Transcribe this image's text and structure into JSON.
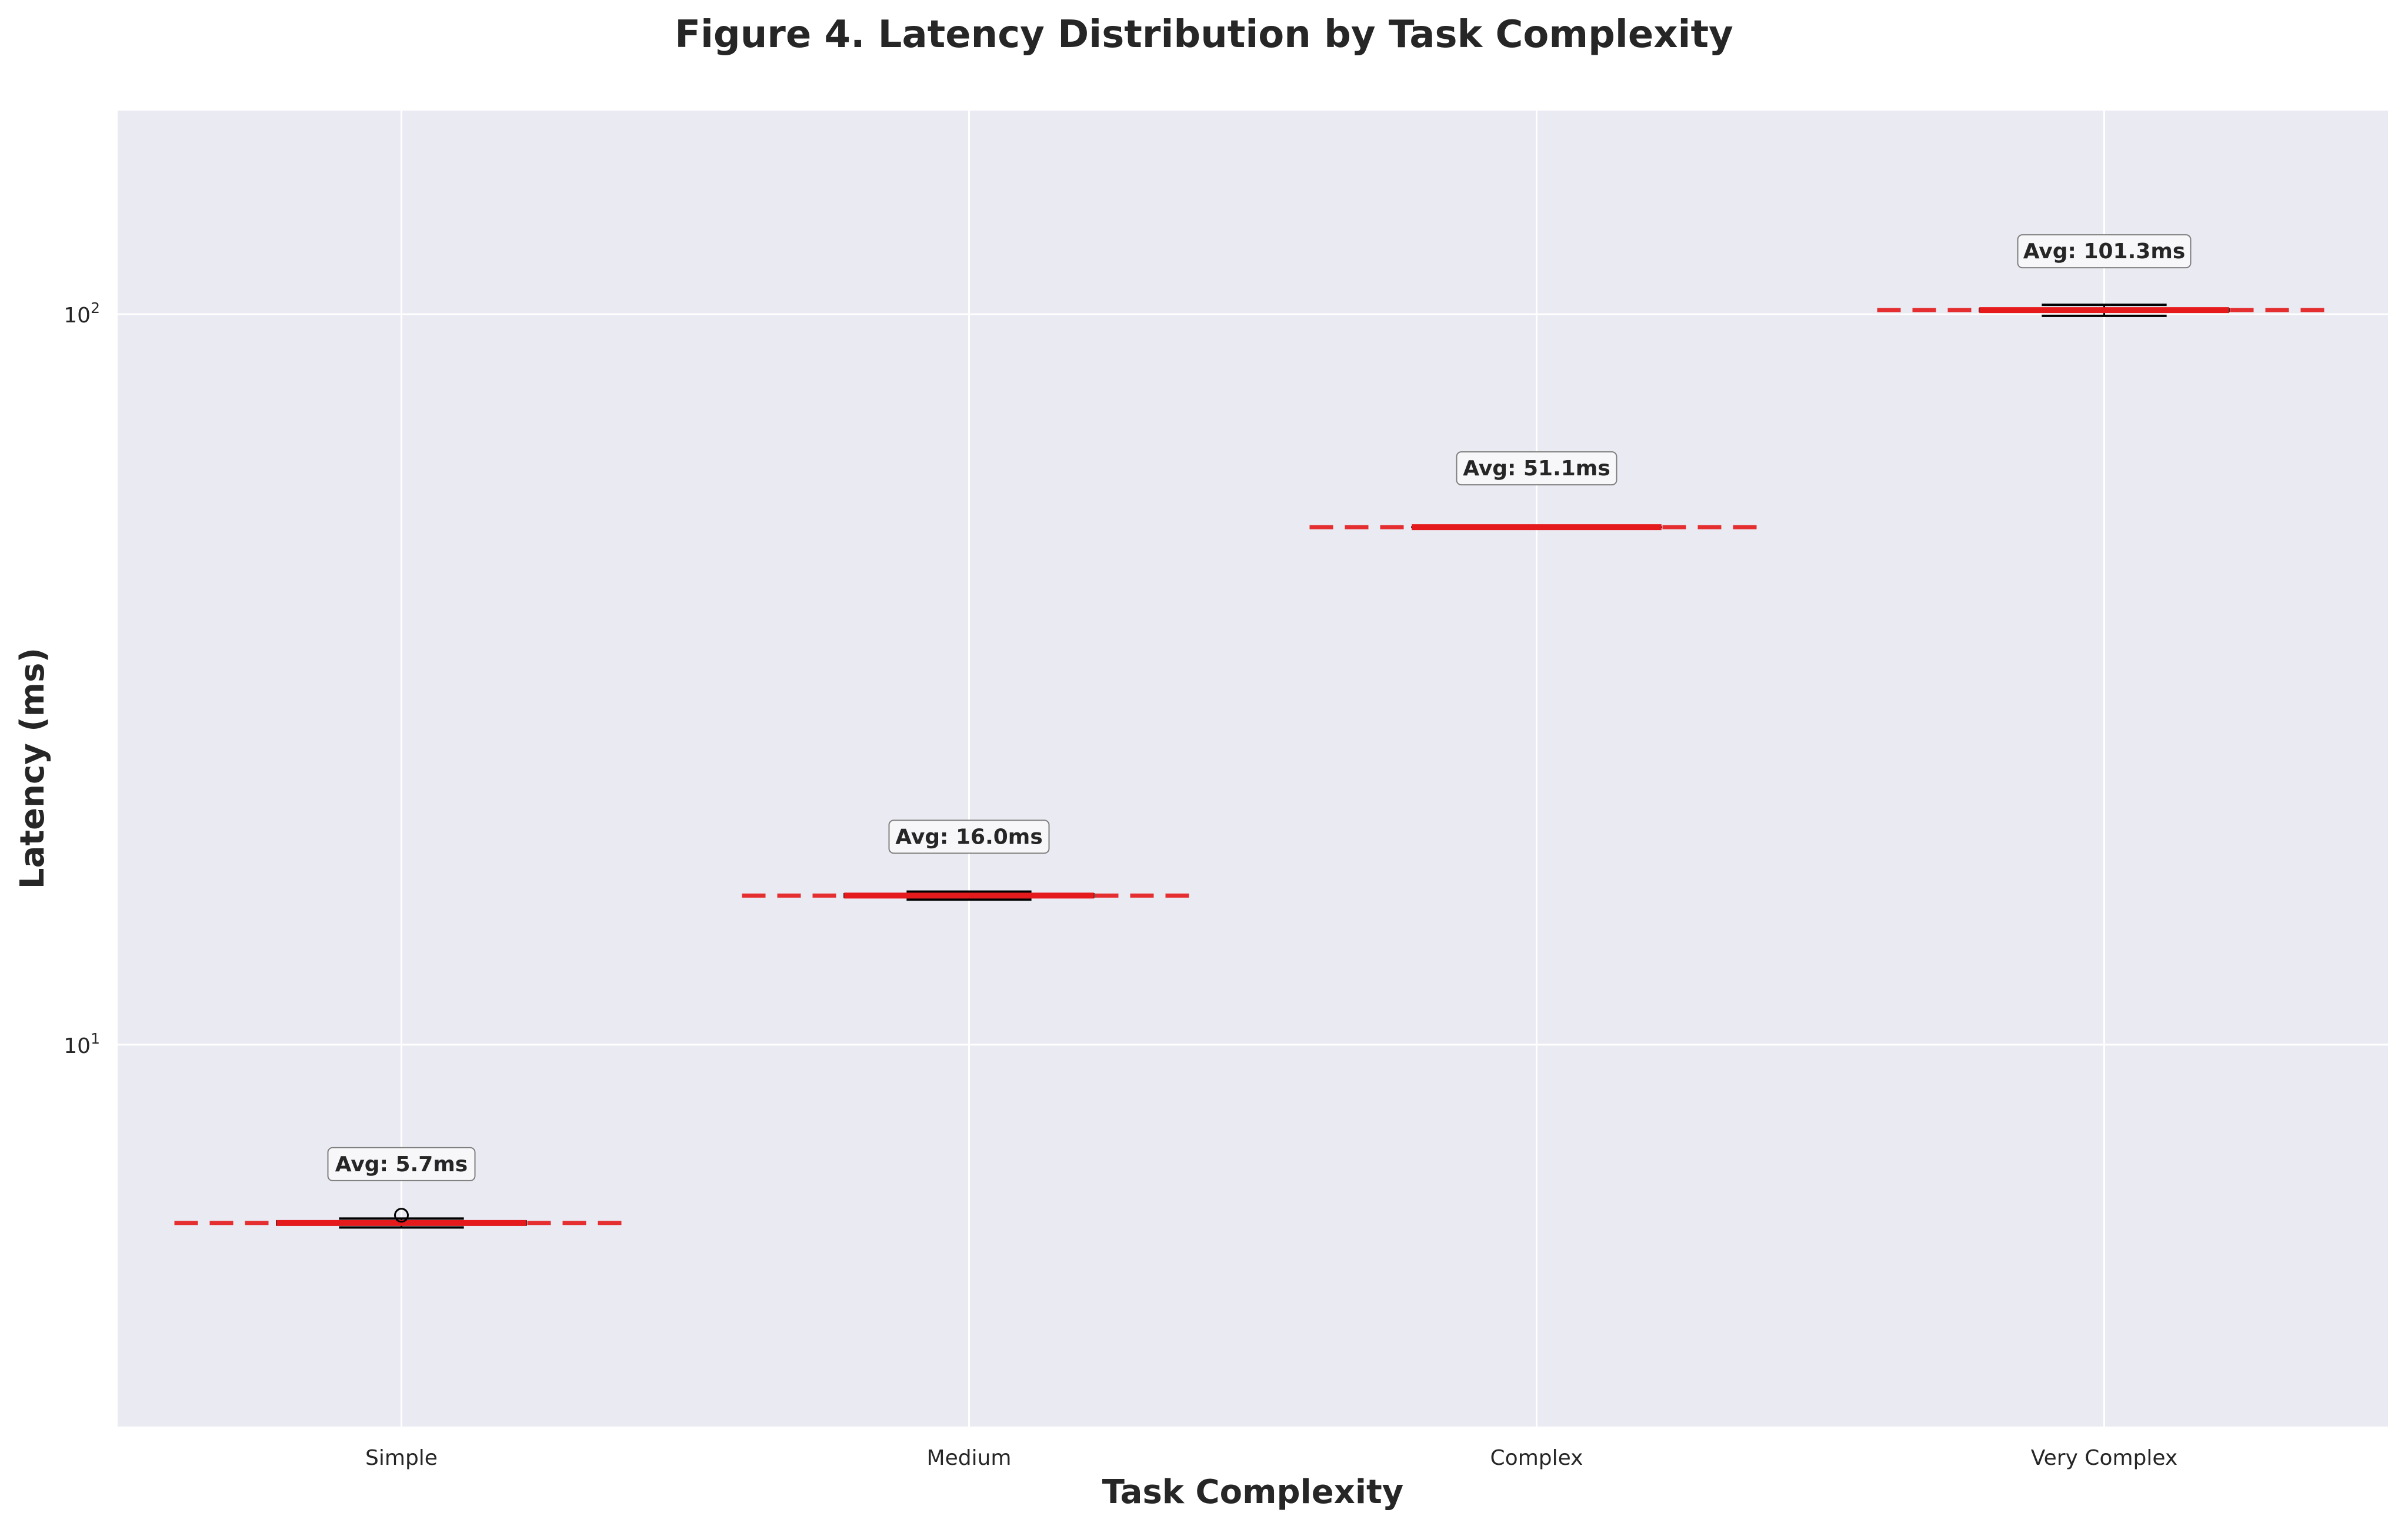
{
  "chart_data": {
    "type": "box",
    "title": "Figure 4. Latency Distribution by Task Complexity",
    "xlabel": "Task Complexity",
    "ylabel": "Latency (ms)",
    "yscale": "log",
    "ylim": [
      3.0,
      190
    ],
    "y_ticks": [
      {
        "value": 10,
        "base": "10",
        "exp": "1"
      },
      {
        "value": 100,
        "base": "10",
        "exp": "2"
      }
    ],
    "grid": true,
    "categories": [
      "Simple",
      "Medium",
      "Complex",
      "Very Complex"
    ],
    "boxes": [
      {
        "category": "Simple",
        "whisker_low": 5.62,
        "q1": 5.66,
        "median": 5.7,
        "q3": 5.74,
        "whisker_high": 5.78,
        "outliers": [
          5.84
        ],
        "mean": 5.7
      },
      {
        "category": "Medium",
        "whisker_low": 15.8,
        "q1": 15.9,
        "median": 16.0,
        "q3": 16.1,
        "whisker_high": 16.2,
        "outliers": [],
        "mean": 16.0
      },
      {
        "category": "Complex",
        "whisker_low": 51.0,
        "q1": 51.05,
        "median": 51.1,
        "q3": 51.15,
        "whisker_high": 51.2,
        "outliers": [],
        "mean": 51.1
      },
      {
        "category": "Very Complex",
        "whisker_low": 99.5,
        "q1": 100.8,
        "median": 101.3,
        "q3": 101.8,
        "whisker_high": 103.0,
        "outliers": [],
        "mean": 101.3
      }
    ],
    "annotations": [
      "Avg: 5.7ms",
      "Avg: 16.0ms",
      "Avg: 51.1ms",
      "Avg: 101.3ms"
    ],
    "colors": {
      "plot_background": "#eaeaf2",
      "grid": "#ffffff",
      "median_line": "#e41a1c",
      "mean_line": "#e41a1c",
      "box_edge": "#000000"
    }
  }
}
